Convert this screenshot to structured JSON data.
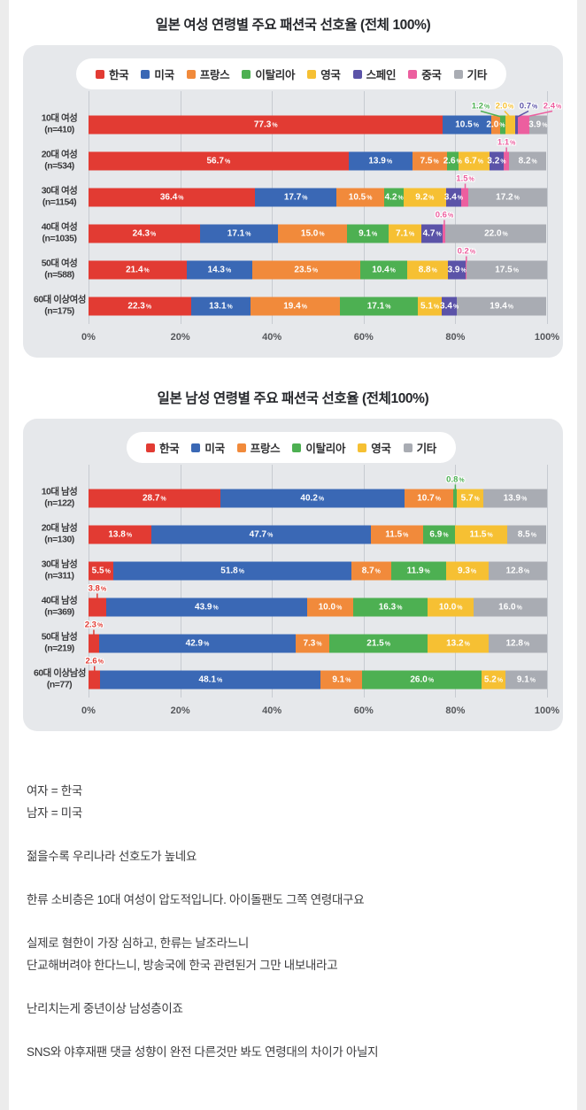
{
  "page": {
    "outer_background": "#ececec",
    "content_background": "#ffffff"
  },
  "chart_data": [
    {
      "type": "bar",
      "stacked": true,
      "orientation": "horizontal",
      "title": "일본 여성 연령별 주요 패션국 선호율 (전체 100%)",
      "panel_color": "#e6e8eb",
      "xlim": [
        0,
        100
      ],
      "x_ticks": [
        "0%",
        "20%",
        "40%",
        "60%",
        "80%",
        "100%"
      ],
      "legend_position": "top-center",
      "legend": [
        {
          "label": "한국",
          "color": "#e23b33"
        },
        {
          "label": "미국",
          "color": "#3a68b5"
        },
        {
          "label": "프랑스",
          "color": "#f18a3b"
        },
        {
          "label": "이탈리아",
          "color": "#4db052"
        },
        {
          "label": "영국",
          "color": "#f6c033"
        },
        {
          "label": "스페인",
          "color": "#5b53a8"
        },
        {
          "label": "중국",
          "color": "#ec5f9f"
        },
        {
          "label": "기타",
          "color": "#a9acb3"
        }
      ],
      "rows": [
        {
          "label": "10대 여성",
          "n": "(n=410)",
          "segments": [
            {
              "value": 77.3
            },
            {
              "value": 10.5
            },
            {
              "value": 2.0
            },
            {
              "value": 1.2,
              "callout": true
            },
            {
              "value": 2.0,
              "callout": true
            },
            {
              "value": 0.7,
              "callout": true
            },
            {
              "value": 2.4,
              "callout": true
            },
            {
              "value": 3.9
            }
          ]
        },
        {
          "label": "20대 여성",
          "n": "(n=534)",
          "segments": [
            {
              "value": 56.7
            },
            {
              "value": 13.9
            },
            {
              "value": 7.5
            },
            {
              "value": 2.6
            },
            {
              "value": 6.7
            },
            {
              "value": 3.2
            },
            {
              "value": 1.1,
              "callout": true
            },
            {
              "value": 8.2
            }
          ]
        },
        {
          "label": "30대 여성",
          "n": "(n=1154)",
          "segments": [
            {
              "value": 36.4
            },
            {
              "value": 17.7
            },
            {
              "value": 10.5
            },
            {
              "value": 4.2
            },
            {
              "value": 9.2
            },
            {
              "value": 3.4
            },
            {
              "value": 1.5,
              "callout": true
            },
            {
              "value": 17.2
            }
          ]
        },
        {
          "label": "40대 여성",
          "n": "(n=1035)",
          "segments": [
            {
              "value": 24.3
            },
            {
              "value": 17.1
            },
            {
              "value": 15.0
            },
            {
              "value": 9.1
            },
            {
              "value": 7.1
            },
            {
              "value": 4.7
            },
            {
              "value": 0.6,
              "callout": true
            },
            {
              "value": 22.0
            }
          ]
        },
        {
          "label": "50대 여성",
          "n": "(n=588)",
          "segments": [
            {
              "value": 21.4
            },
            {
              "value": 14.3
            },
            {
              "value": 23.5
            },
            {
              "value": 10.4
            },
            {
              "value": 8.8
            },
            {
              "value": 3.9
            },
            {
              "value": 0.2,
              "callout": true
            },
            {
              "value": 17.5
            }
          ]
        },
        {
          "label": "60대 이상여성",
          "n": "(n=175)",
          "segments": [
            {
              "value": 22.3
            },
            {
              "value": 13.1
            },
            {
              "value": 19.4
            },
            {
              "value": 17.1
            },
            {
              "value": 5.1
            },
            {
              "value": 3.4
            },
            {
              "value": 0
            },
            {
              "value": 19.4
            }
          ]
        }
      ]
    },
    {
      "type": "bar",
      "stacked": true,
      "orientation": "horizontal",
      "title": "일본 남성 연령별 주요 패션국 선호율 (전체100%)",
      "panel_color": "#e6e8eb",
      "xlim": [
        0,
        100
      ],
      "x_ticks": [
        "0%",
        "20%",
        "40%",
        "60%",
        "80%",
        "100%"
      ],
      "legend_position": "top-center",
      "legend": [
        {
          "label": "한국",
          "color": "#e23b33"
        },
        {
          "label": "미국",
          "color": "#3a68b5"
        },
        {
          "label": "프랑스",
          "color": "#f18a3b"
        },
        {
          "label": "이탈리아",
          "color": "#4db052"
        },
        {
          "label": "영국",
          "color": "#f6c033"
        },
        {
          "label": "기타",
          "color": "#a9acb3"
        }
      ],
      "rows": [
        {
          "label": "10대 남성",
          "n": "(n=122)",
          "segments": [
            {
              "value": 28.7
            },
            {
              "value": 40.2
            },
            {
              "value": 10.7
            },
            {
              "value": 0.8,
              "callout": true
            },
            {
              "value": 5.7
            },
            {
              "value": 13.9
            }
          ]
        },
        {
          "label": "20대 남성",
          "n": "(n=130)",
          "segments": [
            {
              "value": 13.8
            },
            {
              "value": 47.7
            },
            {
              "value": 11.5
            },
            {
              "value": 6.9
            },
            {
              "value": 11.5
            },
            {
              "value": 8.5
            }
          ]
        },
        {
          "label": "30대 남성",
          "n": "(n=311)",
          "segments": [
            {
              "value": 5.5
            },
            {
              "value": 51.8
            },
            {
              "value": 8.7
            },
            {
              "value": 11.9
            },
            {
              "value": 9.3
            },
            {
              "value": 12.8
            }
          ]
        },
        {
          "label": "40대 남성",
          "n": "(n=369)",
          "segments": [
            {
              "value": 3.8,
              "callout": true
            },
            {
              "value": 43.9
            },
            {
              "value": 10.0
            },
            {
              "value": 16.3
            },
            {
              "value": 10.0
            },
            {
              "value": 16.0
            }
          ]
        },
        {
          "label": "50대 남성",
          "n": "(n=219)",
          "segments": [
            {
              "value": 2.3,
              "callout": true
            },
            {
              "value": 42.9
            },
            {
              "value": 7.3
            },
            {
              "value": 21.5
            },
            {
              "value": 13.2
            },
            {
              "value": 12.8
            }
          ]
        },
        {
          "label": "60대 이상남성",
          "n": "(n=77)",
          "segments": [
            {
              "value": 2.6,
              "callout": true
            },
            {
              "value": 48.1
            },
            {
              "value": 9.1
            },
            {
              "value": 26.0
            },
            {
              "value": 5.2
            },
            {
              "value": 9.1
            }
          ]
        }
      ]
    }
  ],
  "comments": {
    "paragraphs": [
      [
        "여자 = 한국",
        "남자 = 미국"
      ],
      [
        "젊을수록 우리나라 선호도가 높네요"
      ],
      [
        "한류 소비층은 10대 여성이 압도적입니다. 아이돌팬도 그쪽 연령대구요"
      ],
      [
        "실제로 혐한이 가장 심하고, 한류는 날조라느니",
        "단교해버려야 한다느니, 방송국에 한국 관련된거 그만 내보내라고"
      ],
      [
        "난리치는게 중년이상 남성층이죠"
      ],
      [
        "SNS와 야후재팬 댓글 성향이 완전 다른것만 봐도 연령대의 차이가 아닐지"
      ]
    ]
  }
}
